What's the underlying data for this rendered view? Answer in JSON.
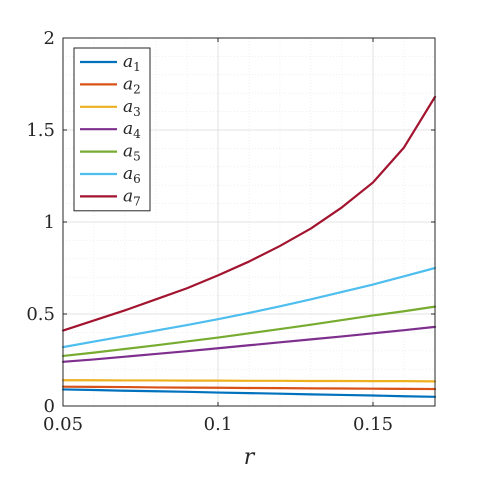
{
  "chart_data": {
    "type": "line",
    "title": "",
    "xlabel": "r",
    "ylabel": "",
    "xlim": [
      0.05,
      0.17
    ],
    "ylim": [
      0,
      2
    ],
    "xticks": [
      0.05,
      0.1,
      0.15
    ],
    "xtick_labels": [
      "0.05",
      "0.1",
      "0.15"
    ],
    "yticks": [
      0,
      0.5,
      1,
      1.5,
      2
    ],
    "ytick_labels": [
      "0",
      "0.5",
      "1",
      "1.5",
      "2"
    ],
    "grid": true,
    "minor_grid": true,
    "legend_position": "top-left",
    "x": [
      0.05,
      0.06,
      0.07,
      0.08,
      0.09,
      0.1,
      0.11,
      0.12,
      0.13,
      0.14,
      0.15,
      0.16,
      0.17
    ],
    "series": [
      {
        "name": "a",
        "sub": "1",
        "color": "#0072bd",
        "values": [
          0.09,
          0.087,
          0.083,
          0.08,
          0.077,
          0.073,
          0.07,
          0.067,
          0.063,
          0.06,
          0.057,
          0.053,
          0.05
        ]
      },
      {
        "name": "a",
        "sub": "2",
        "color": "#d95319",
        "values": [
          0.105,
          0.104,
          0.103,
          0.101,
          0.1,
          0.099,
          0.098,
          0.097,
          0.096,
          0.095,
          0.094,
          0.093,
          0.092
        ]
      },
      {
        "name": "a",
        "sub": "3",
        "color": "#edb120",
        "values": [
          0.14,
          0.14,
          0.139,
          0.139,
          0.138,
          0.138,
          0.137,
          0.137,
          0.136,
          0.136,
          0.135,
          0.135,
          0.134
        ]
      },
      {
        "name": "a",
        "sub": "4",
        "color": "#7e2f8e",
        "values": [
          0.24,
          0.253,
          0.268,
          0.283,
          0.298,
          0.314,
          0.33,
          0.346,
          0.362,
          0.378,
          0.395,
          0.412,
          0.43
        ]
      },
      {
        "name": "a",
        "sub": "5",
        "color": "#77ac30",
        "values": [
          0.272,
          0.29,
          0.31,
          0.33,
          0.351,
          0.372,
          0.395,
          0.418,
          0.442,
          0.467,
          0.492,
          0.515,
          0.54
        ]
      },
      {
        "name": "a",
        "sub": "6",
        "color": "#4dbeee",
        "values": [
          0.32,
          0.35,
          0.38,
          0.41,
          0.44,
          0.472,
          0.506,
          0.542,
          0.58,
          0.62,
          0.66,
          0.705,
          0.75
        ]
      },
      {
        "name": "a",
        "sub": "7",
        "color": "#a2142f",
        "values": [
          0.41,
          0.465,
          0.52,
          0.58,
          0.64,
          0.71,
          0.785,
          0.87,
          0.965,
          1.08,
          1.215,
          1.405,
          1.68
        ]
      }
    ]
  }
}
